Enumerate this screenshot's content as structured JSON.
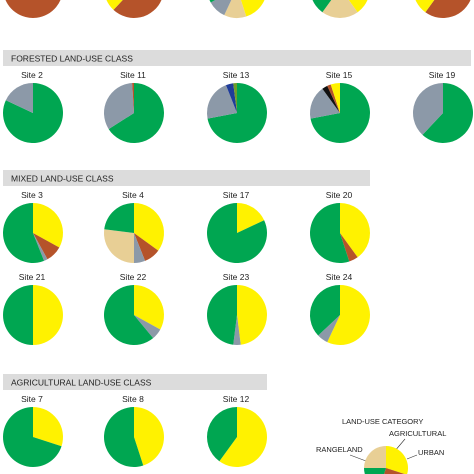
{
  "chart_data": {
    "type": "pie",
    "colors": {
      "forested": "#00a651",
      "agricultural": "#fff200",
      "urban": "#b5532a",
      "rangeland": "#e8cf95",
      "barren": "#8c99a8",
      "water": "#1f3c99",
      "wetland": "#6e9d2a",
      "dark": "#111111"
    },
    "top_row": [
      {
        "slices": [
          [
            "urban",
            72
          ],
          [
            "forested",
            28
          ]
        ]
      },
      {
        "slices": [
          [
            "urban",
            62
          ],
          [
            "agricultural",
            10
          ],
          [
            "forested",
            28
          ]
        ]
      },
      {
        "slices": [
          [
            "agricultural",
            45
          ],
          [
            "rangeland",
            12
          ],
          [
            "barren",
            10
          ],
          [
            "forested",
            33
          ]
        ]
      },
      {
        "slices": [
          [
            "agricultural",
            40
          ],
          [
            "rangeland",
            20
          ],
          [
            "forested",
            40
          ]
        ]
      },
      {
        "slices": [
          [
            "urban",
            60
          ],
          [
            "agricultural",
            15
          ],
          [
            "forested",
            25
          ]
        ]
      }
    ],
    "groups": [
      {
        "title": "FORESTED LAND-USE CLASS",
        "sites": [
          {
            "label": "Site 2",
            "slices": [
              [
                "forested",
                82
              ],
              [
                "barren",
                18
              ]
            ]
          },
          {
            "label": "Site 11",
            "slices": [
              [
                "forested",
                66
              ],
              [
                "barren",
                33
              ],
              [
                "urban",
                1
              ]
            ]
          },
          {
            "label": "Site 13",
            "slices": [
              [
                "forested",
                72
              ],
              [
                "barren",
                22
              ],
              [
                "water",
                4
              ],
              [
                "wetland",
                2
              ]
            ]
          },
          {
            "label": "Site 15",
            "slices": [
              [
                "forested",
                72
              ],
              [
                "barren",
                18
              ],
              [
                "dark",
                3
              ],
              [
                "urban",
                2
              ],
              [
                "agricultural",
                5
              ]
            ]
          },
          {
            "label": "Site 19",
            "slices": [
              [
                "forested",
                62
              ],
              [
                "barren",
                38
              ]
            ]
          }
        ]
      },
      {
        "title": "MIXED LAND-USE CLASS",
        "sites": [
          {
            "label": "Site 3",
            "slices": [
              [
                "agricultural",
                33
              ],
              [
                "urban",
                9
              ],
              [
                "barren",
                2
              ],
              [
                "forested",
                56
              ]
            ]
          },
          {
            "label": "Site 4",
            "slices": [
              [
                "agricultural",
                35
              ],
              [
                "urban",
                9
              ],
              [
                "barren",
                6
              ],
              [
                "rangeland",
                27
              ],
              [
                "forested",
                23
              ]
            ]
          },
          {
            "label": "Site 17",
            "slices": [
              [
                "agricultural",
                18
              ],
              [
                "forested",
                82
              ]
            ]
          },
          {
            "label": "Site 20",
            "slices": [
              [
                "agricultural",
                40
              ],
              [
                "urban",
                5
              ],
              [
                "forested",
                55
              ]
            ]
          },
          {
            "label": "Site 21",
            "slices": [
              [
                "agricultural",
                50
              ],
              [
                "forested",
                50
              ]
            ]
          },
          {
            "label": "Site 22",
            "slices": [
              [
                "agricultural",
                33
              ],
              [
                "barren",
                6
              ],
              [
                "forested",
                61
              ]
            ]
          },
          {
            "label": "Site 23",
            "slices": [
              [
                "agricultural",
                48
              ],
              [
                "barren",
                4
              ],
              [
                "forested",
                48
              ]
            ]
          },
          {
            "label": "Site 24",
            "slices": [
              [
                "agricultural",
                57
              ],
              [
                "barren",
                6
              ],
              [
                "forested",
                37
              ]
            ]
          }
        ]
      },
      {
        "title": "AGRICULTURAL LAND-USE CLASS",
        "sites": [
          {
            "label": "Site 7",
            "slices": [
              [
                "agricultural",
                30
              ],
              [
                "forested",
                70
              ]
            ]
          },
          {
            "label": "Site 8",
            "slices": [
              [
                "agricultural",
                45
              ],
              [
                "forested",
                55
              ]
            ]
          },
          {
            "label": "Site 12",
            "slices": [
              [
                "agricultural",
                60
              ],
              [
                "forested",
                40
              ]
            ]
          }
        ]
      }
    ],
    "legend": {
      "title": "LAND-USE CATEGORY",
      "items": [
        {
          "label": "AGRICULTURAL",
          "key": "agricultural"
        },
        {
          "label": "URBAN",
          "key": "urban"
        },
        {
          "label": "RANGELAND",
          "key": "rangeland"
        }
      ],
      "slices": [
        [
          "agricultural",
          30
        ],
        [
          "urban",
          25
        ],
        [
          "forested",
          20
        ],
        [
          "rangeland",
          25
        ]
      ]
    }
  }
}
